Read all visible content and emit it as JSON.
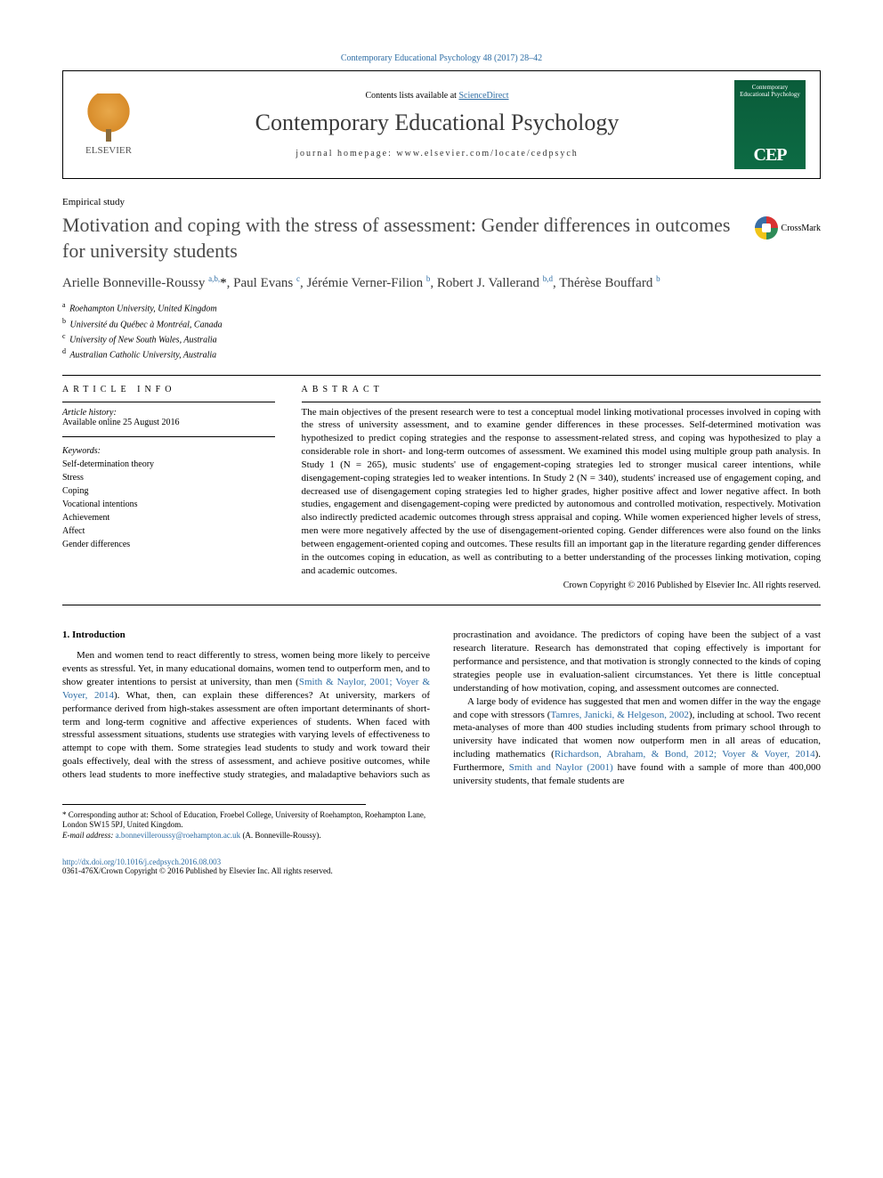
{
  "top_citation": "Contemporary Educational Psychology 48 (2017) 28–42",
  "header": {
    "contents_prefix": "Contents lists available at ",
    "contents_link": "ScienceDirect",
    "journal_title": "Contemporary Educational Psychology",
    "homepage_prefix": "journal homepage: ",
    "homepage_url": "www.elsevier.com/locate/cedpsych",
    "publisher": "ELSEVIER",
    "cover_title": "Contemporary Educational Psychology",
    "cover_logo": "CEP"
  },
  "article_type": "Empirical study",
  "title": "Motivation and coping with the stress of assessment: Gender differences in outcomes for university students",
  "crossmark_label": "CrossMark",
  "authors_html": "Arielle Bonneville-Roussy <sup>a,b,</sup><span class='star'>*</span>, Paul Evans <sup>c</sup>, Jérémie Verner-Filion <sup>b</sup>, Robert J. Vallerand <sup>b,d</sup>, Thérèse Bouffard <sup>b</sup>",
  "affiliations": [
    {
      "sup": "a",
      "text": "Roehampton University, United Kingdom"
    },
    {
      "sup": "b",
      "text": "Université du Québec à Montréal, Canada"
    },
    {
      "sup": "c",
      "text": "University of New South Wales, Australia"
    },
    {
      "sup": "d",
      "text": "Australian Catholic University, Australia"
    }
  ],
  "info": {
    "heading": "ARTICLE INFO",
    "history_label": "Article history:",
    "history_value": "Available online 25 August 2016",
    "keywords_label": "Keywords:",
    "keywords": [
      "Self-determination theory",
      "Stress",
      "Coping",
      "Vocational intentions",
      "Achievement",
      "Affect",
      "Gender differences"
    ]
  },
  "abstract": {
    "heading": "ABSTRACT",
    "text": "The main objectives of the present research were to test a conceptual model linking motivational processes involved in coping with the stress of university assessment, and to examine gender differences in these processes. Self-determined motivation was hypothesized to predict coping strategies and the response to assessment-related stress, and coping was hypothesized to play a considerable role in short- and long-term outcomes of assessment. We examined this model using multiple group path analysis. In Study 1 (N = 265), music students' use of engagement-coping strategies led to stronger musical career intentions, while disengagement-coping strategies led to weaker intentions. In Study 2 (N = 340), students' increased use of engagement coping, and decreased use of disengagement coping strategies led to higher grades, higher positive affect and lower negative affect. In both studies, engagement and disengagement-coping were predicted by autonomous and controlled motivation, respectively. Motivation also indirectly predicted academic outcomes through stress appraisal and coping. While women experienced higher levels of stress, men were more negatively affected by the use of disengagement-oriented coping. Gender differences were also found on the links between engagement-oriented coping and outcomes. These results fill an important gap in the literature regarding gender differences in the outcomes coping in education, as well as contributing to a better understanding of the processes linking motivation, coping and academic outcomes.",
    "copyright": "Crown Copyright © 2016 Published by Elsevier Inc. All rights reserved."
  },
  "body": {
    "section_heading": "1. Introduction",
    "p1_pre": "Men and women tend to react differently to stress, women being more likely to perceive events as stressful. Yet, in many educational domains, women tend to outperform men, and to show greater intentions to persist at university, than men (",
    "p1_link1": "Smith & Naylor, 2001; Voyer & Voyer, 2014",
    "p1_post": "). What, then, can explain these differences? At university, markers of performance derived from high-stakes assessment are often important determinants of short-term and long-term cognitive and affective experiences of students. When faced with stressful assessment situations, students use strategies with varying levels of effectiveness to attempt to cope with them. Some strategies lead students to study and work toward their goals effectively, deal with the stress of assessment, and achieve positive outcomes, while others lead students to more ineffective study strategies, and maladaptive behaviors such as procrastination and avoidance. The predictors of coping have been the subject of a vast research literature. Research has demonstrated that coping effectively is important for performance and persistence, and that motivation is strongly connected to the kinds of coping strategies people use in evaluation-salient circumstances. Yet there is little conceptual understanding of how motivation, coping, and assessment outcomes are connected.",
    "p2_pre": "A large body of evidence has suggested that men and women differ in the way the engage and cope with stressors (",
    "p2_link1": "Tamres, Janicki, & Helgeson, 2002",
    "p2_mid1": "), including at school. Two recent meta-analyses of more than 400 studies including students from primary school through to university have indicated that women now outperform men in all areas of education, including mathematics (",
    "p2_link2": "Richardson, Abraham, & Bond, 2012; Voyer & Voyer, 2014",
    "p2_mid2": "). Furthermore, ",
    "p2_link3": "Smith and Naylor (2001)",
    "p2_post": " have found with a sample of more than 400,000 university students, that female students are"
  },
  "footnotes": {
    "corr_prefix": "* Corresponding author at: ",
    "corr_text": "School of Education, Froebel College, University of Roehampton, Roehampton Lane, London SW15 5PJ, United Kingdom.",
    "email_label": "E-mail address: ",
    "email": "a.bonnevilleroussy@roehampton.ac.uk",
    "email_suffix": " (A. Bonneville-Roussy)."
  },
  "doi": "http://dx.doi.org/10.1016/j.cedpsych.2016.08.003",
  "issn_line": "0361-476X/Crown Copyright © 2016 Published by Elsevier Inc. All rights reserved.",
  "colors": {
    "link": "#2e6da4",
    "text": "#000000",
    "cover_bg": "#0d6b44"
  }
}
